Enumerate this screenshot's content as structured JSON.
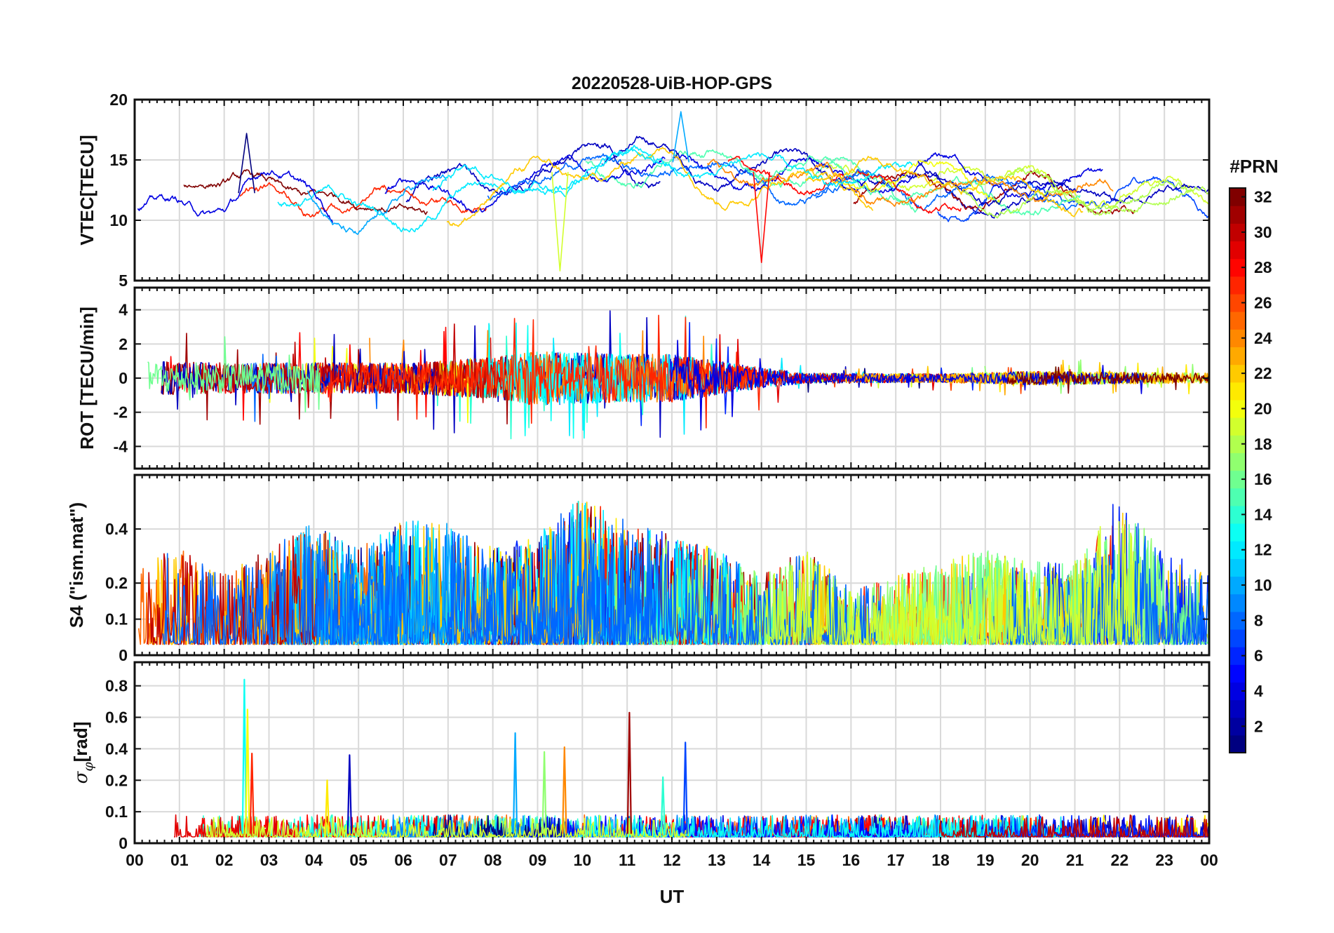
{
  "chart_data": {
    "type": "line",
    "title": "20220528-UiB-HOP-GPS",
    "xlabel": "UT",
    "xlim": [
      0,
      24
    ],
    "x_tick_labels": [
      "00",
      "01",
      "02",
      "03",
      "04",
      "05",
      "06",
      "07",
      "08",
      "09",
      "10",
      "11",
      "12",
      "13",
      "14",
      "15",
      "16",
      "17",
      "18",
      "19",
      "20",
      "21",
      "22",
      "23",
      "00"
    ],
    "grid": true,
    "colorbar": {
      "title": "#PRN",
      "range": [
        1,
        32
      ],
      "tick_labels": [
        "2",
        "4",
        "6",
        "8",
        "10",
        "12",
        "14",
        "16",
        "18",
        "20",
        "22",
        "24",
        "26",
        "28",
        "30",
        "32"
      ],
      "colormap": "jet",
      "placement": "right"
    },
    "panels": [
      {
        "id": "vtec",
        "ylabel": "VTEC[TECU]",
        "ylim": [
          5,
          20
        ],
        "yticks": [
          5,
          10,
          15,
          20
        ],
        "ytick_labels": [
          "5",
          "10",
          "15",
          "20"
        ],
        "base_series": [
          {
            "x": [
              0,
              1,
              2,
              3,
              4,
              5,
              6,
              7,
              8,
              9,
              10,
              11,
              12,
              13,
              14,
              15,
              16,
              17,
              18,
              19,
              20,
              21,
              22,
              23,
              24
            ],
            "y": [
              10,
              12,
              11.5,
              13,
              12,
              10,
              11,
              12,
              12,
              14,
              14,
              14.5,
              15,
              14,
              14,
              13.5,
              13,
              13,
              13,
              12.5,
              12.5,
              12,
              12,
              12,
              11.5
            ]
          }
        ],
        "peak_annotations": [
          {
            "x": 2.5,
            "y": 17.2
          },
          {
            "x": 12.2,
            "y": 19
          },
          {
            "x": 9.5,
            "y": 5.8
          },
          {
            "x": 14,
            "y": 6.5
          }
        ]
      },
      {
        "id": "rot",
        "ylabel": "ROT [TECU/min]",
        "ylim": [
          -5.3,
          5.3
        ],
        "yticks": [
          -4,
          -2,
          0,
          2,
          4
        ],
        "ytick_labels": [
          "-4",
          "-2",
          "0",
          "2",
          "4"
        ],
        "activity_envelope": {
          "x": [
            0,
            2,
            4,
            6,
            8,
            9,
            10,
            11,
            12,
            13,
            14,
            15,
            18,
            20,
            22,
            24
          ],
          "y": [
            1.0,
            0.9,
            0.9,
            0.9,
            1.2,
            1.6,
            1.5,
            1.4,
            1.4,
            1.0,
            0.6,
            0.3,
            0.25,
            0.4,
            0.35,
            0.3
          ]
        }
      },
      {
        "id": "s4",
        "ylabel": "S4 (\"ism.mat\")",
        "ylim": [
          0,
          0.6
        ],
        "yticks": [
          0,
          0.1,
          0.2,
          0.4
        ],
        "ytick_labels": [
          "0",
          "0.1",
          "0.2",
          "0.4"
        ],
        "activity_envelope": {
          "x": [
            0,
            1,
            2,
            4,
            5,
            6,
            7,
            8,
            9,
            10,
            11,
            12,
            13,
            14,
            15,
            16,
            17,
            18,
            19,
            20,
            21,
            22,
            23,
            24
          ],
          "y": [
            0.25,
            0.3,
            0.2,
            0.4,
            0.3,
            0.4,
            0.4,
            0.3,
            0.35,
            0.5,
            0.4,
            0.35,
            0.3,
            0.2,
            0.3,
            0.15,
            0.2,
            0.25,
            0.3,
            0.25,
            0.25,
            0.5,
            0.3,
            0.2
          ]
        }
      },
      {
        "id": "sigma_phi",
        "ylabel": "σφ[rad]",
        "ylabel_symbol": "σ",
        "ylabel_subscript": "φ",
        "ylabel_unit": "[rad]",
        "ylim": [
          0,
          0.95
        ],
        "yticks": [
          0,
          0.1,
          0.2,
          0.4,
          0.6,
          0.8
        ],
        "ytick_labels": [
          "0",
          "0.1",
          "0.2",
          "0.4",
          "0.6",
          "0.8"
        ],
        "spikes": [
          {
            "x": 2.45,
            "y": 0.84
          },
          {
            "x": 2.52,
            "y": 0.65
          },
          {
            "x": 2.62,
            "y": 0.37
          },
          {
            "x": 4.8,
            "y": 0.36
          },
          {
            "x": 8.5,
            "y": 0.5
          },
          {
            "x": 9.15,
            "y": 0.38
          },
          {
            "x": 9.6,
            "y": 0.41
          },
          {
            "x": 11.05,
            "y": 0.63
          },
          {
            "x": 12.3,
            "y": 0.44
          },
          {
            "x": 11.8,
            "y": 0.22
          },
          {
            "x": 4.3,
            "y": 0.2
          }
        ]
      }
    ]
  }
}
